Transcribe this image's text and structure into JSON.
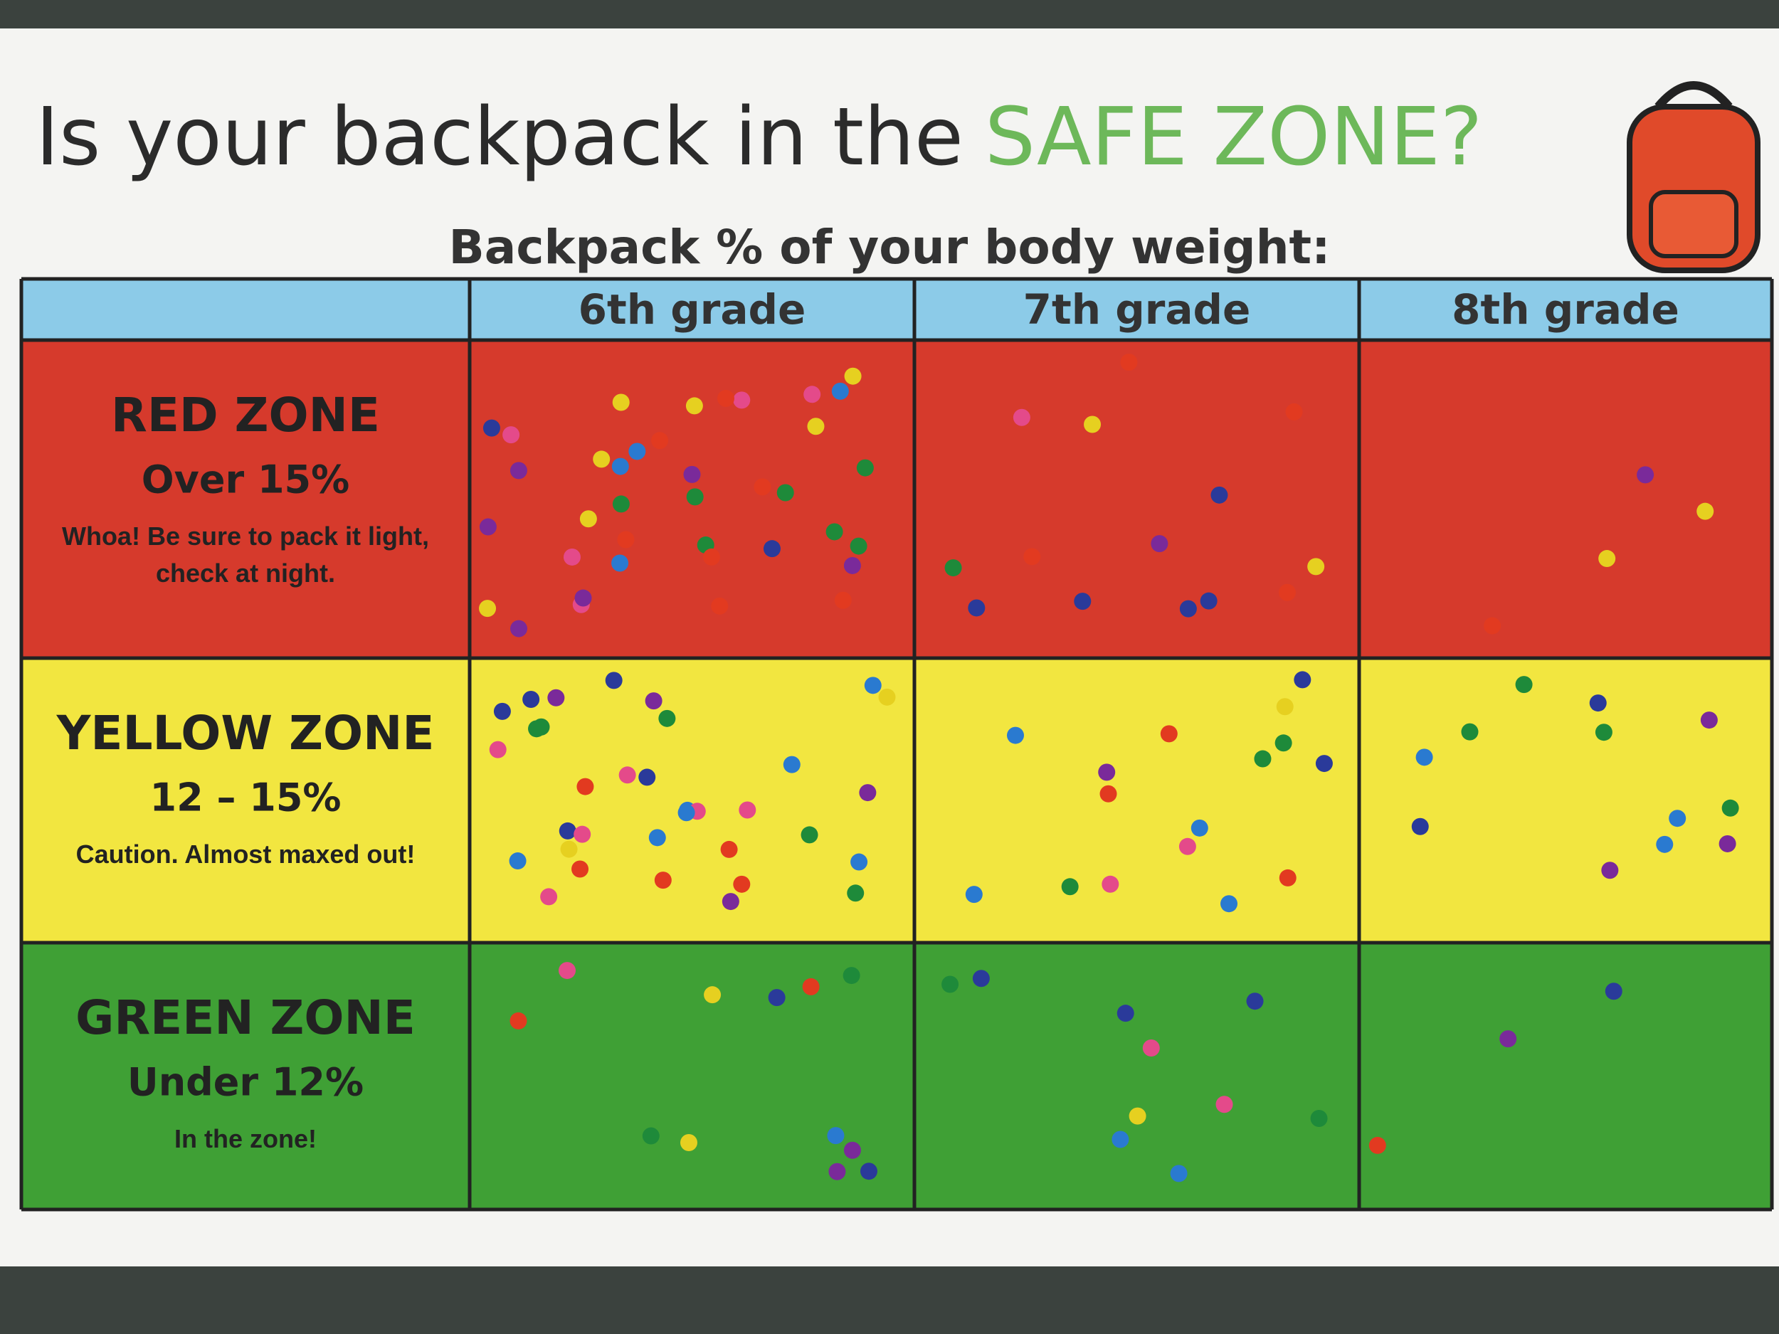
{
  "title": {
    "prefix": "Is your backpack in the",
    "highlight": "SAFE ZONE?"
  },
  "subtitle": "Backpack % of your body weight:",
  "table": {
    "columns": [
      "6th grade",
      "7th grade",
      "8th grade"
    ],
    "rows": [
      {
        "zone": "RED ZONE",
        "range": "Over 15%",
        "note": "Whoa! Be sure to pack it light, check at night."
      },
      {
        "zone": "YELLOW ZONE",
        "range": "12 – 15%",
        "note": "Caution. Almost maxed out!"
      },
      {
        "zone": "GREEN ZONE",
        "range": "Under 12%",
        "note": "In the zone!"
      }
    ]
  }
}
